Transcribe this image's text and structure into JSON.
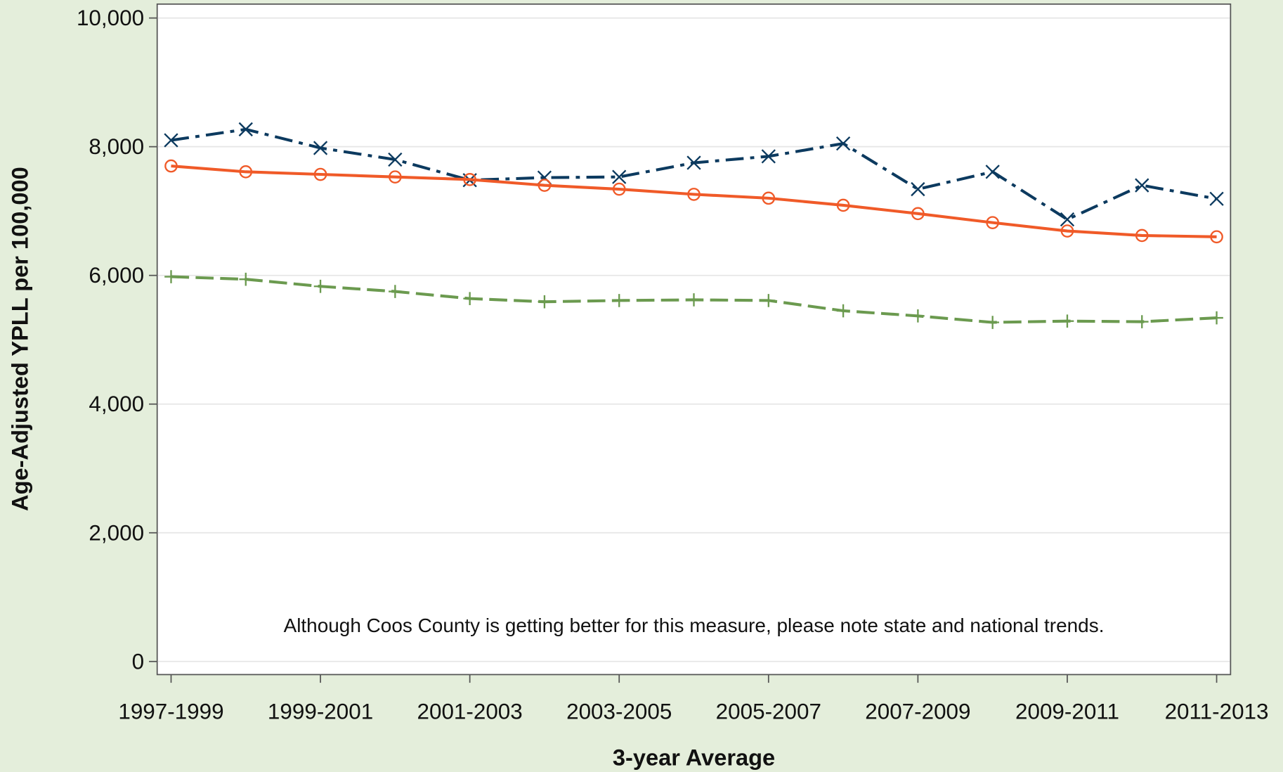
{
  "chart_data": {
    "type": "line",
    "xlabel": "3-year Average",
    "ylabel": "Age-Adjusted YPLL per 100,000",
    "annotation": "Although Coos County is getting better for this measure, please note state and national trends.",
    "categories": [
      "1997-1999",
      null,
      "1999-2001",
      null,
      "2001-2003",
      null,
      "2003-2005",
      null,
      "2005-2007",
      null,
      "2007-2009",
      null,
      "2009-2011",
      null,
      "2011-2013"
    ],
    "series": [
      {
        "color": "#0c3a5f",
        "dash": "dashdot",
        "marker": "x",
        "values": [
          8100,
          8270,
          7980,
          7800,
          7480,
          7520,
          7530,
          7750,
          7850,
          8050,
          7340,
          7610,
          6870,
          7400,
          7190
        ]
      },
      {
        "color": "#f05a28",
        "dash": "solid",
        "marker": "circle",
        "values": [
          7700,
          7610,
          7570,
          7530,
          7490,
          7400,
          7340,
          7260,
          7200,
          7090,
          6960,
          6820,
          6690,
          6620,
          6600
        ]
      },
      {
        "color": "#6b9a4f",
        "dash": "dash",
        "marker": "plus",
        "values": [
          5980,
          5940,
          5830,
          5750,
          5640,
          5590,
          5610,
          5620,
          5610,
          5450,
          5370,
          5270,
          5290,
          5280,
          5340
        ]
      }
    ],
    "ylim": [
      0,
      10000
    ],
    "yticks": [
      0,
      {
        "value": 2000,
        "label": "2,000"
      },
      {
        "value": 4000,
        "label": "4,000"
      },
      {
        "value": 6000,
        "label": "6,000"
      },
      {
        "value": 8000,
        "label": "8,000"
      },
      {
        "value": 10000,
        "label": "10,000"
      }
    ],
    "grid": true
  }
}
